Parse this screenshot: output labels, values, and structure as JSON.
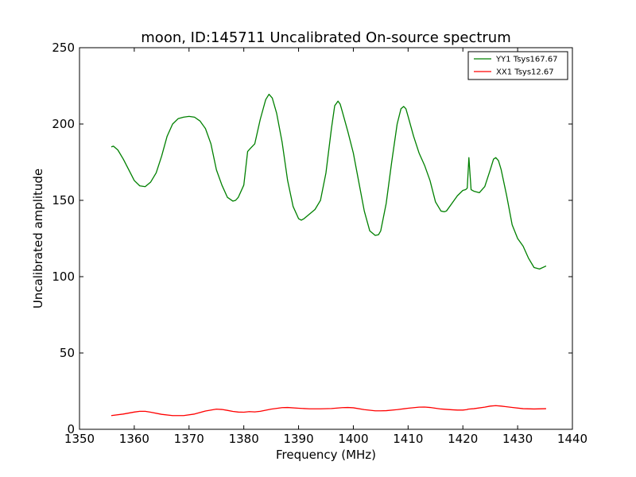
{
  "chart_data": {
    "type": "line",
    "title": "moon, ID:145711 Uncalibrated On-source spectrum",
    "xlabel": "Frequency (MHz)",
    "ylabel": "Uncalibrated amplitude",
    "xlim": [
      1350,
      1440
    ],
    "ylim": [
      0,
      250
    ],
    "xticks": [
      1350,
      1360,
      1370,
      1380,
      1390,
      1400,
      1410,
      1420,
      1430,
      1440
    ],
    "yticks": [
      0,
      50,
      100,
      150,
      200,
      250
    ],
    "grid": false,
    "legend_position": "top-right",
    "series": [
      {
        "name": "YY1 Tsys167.67",
        "color": "#008000",
        "x": [
          1355.8,
          1356.2,
          1357,
          1358,
          1359,
          1360,
          1361,
          1362,
          1363,
          1364,
          1365,
          1366,
          1367,
          1368,
          1369,
          1370,
          1371,
          1372,
          1373,
          1374,
          1375,
          1376,
          1377,
          1378,
          1378.5,
          1379,
          1380,
          1380.7,
          1381.2,
          1382,
          1383,
          1384,
          1384.6,
          1385.2,
          1386,
          1387,
          1388,
          1389,
          1390,
          1390.5,
          1391,
          1392,
          1393,
          1394,
          1395,
          1396,
          1396.6,
          1397.2,
          1397.6,
          1398,
          1399,
          1400,
          1401,
          1402,
          1403,
          1404,
          1404.6,
          1405,
          1406,
          1407,
          1408,
          1408.7,
          1409.2,
          1409.6,
          1410,
          1411,
          1412,
          1413,
          1414,
          1415,
          1416,
          1416.6,
          1417,
          1418,
          1419,
          1420,
          1420.5,
          1420.8,
          1421.1,
          1421.5,
          1422,
          1423,
          1424,
          1425,
          1425.6,
          1426,
          1426.5,
          1427,
          1428,
          1429,
          1430,
          1431,
          1432,
          1433,
          1434,
          1435.2
        ],
        "y": [
          185,
          185.5,
          183,
          177,
          170,
          163,
          159.5,
          159,
          162,
          168,
          179,
          192,
          200,
          203.5,
          204.5,
          205,
          204.5,
          202,
          197,
          187,
          170,
          160,
          152,
          149.5,
          150,
          152,
          160,
          182,
          184,
          187,
          203,
          216,
          219.5,
          217,
          207,
          188,
          163,
          146,
          138,
          137,
          138,
          141,
          144,
          150,
          168,
          197,
          212,
          215,
          213,
          208,
          195,
          181,
          162,
          143,
          130,
          127,
          127.5,
          130,
          148,
          175,
          200,
          210,
          211.5,
          210,
          205,
          192,
          181,
          173,
          163,
          149,
          143,
          142.5,
          143,
          148,
          153,
          156.5,
          157,
          158,
          178,
          157,
          156,
          155,
          159,
          170,
          177,
          178,
          176,
          170,
          153,
          134,
          125,
          120,
          112,
          106,
          105,
          107
        ]
      },
      {
        "name": "XX1 Tsys12.67",
        "color": "#ff0000",
        "x": [
          1355.8,
          1358,
          1360,
          1361,
          1362,
          1363,
          1365,
          1367,
          1369,
          1371,
          1373,
          1375,
          1376,
          1377,
          1378,
          1379,
          1380,
          1381,
          1382,
          1383,
          1385,
          1387,
          1388,
          1390,
          1392,
          1394,
          1396,
          1398,
          1399,
          1400,
          1402,
          1404,
          1405,
          1406,
          1408,
          1410,
          1412,
          1413,
          1414,
          1416,
          1418,
          1419,
          1420,
          1420.7,
          1421,
          1422,
          1424,
          1425,
          1426,
          1427,
          1429,
          1431,
          1433,
          1435.2
        ],
        "y": [
          9,
          10,
          11.3,
          11.8,
          11.8,
          11.2,
          9.8,
          9,
          9,
          10,
          12,
          13.2,
          13,
          12.4,
          11.7,
          11.3,
          11.2,
          11.6,
          11.4,
          11.8,
          13.2,
          14.2,
          14.3,
          13.8,
          13.4,
          13.4,
          13.6,
          14.2,
          14.3,
          14.1,
          12.9,
          12.1,
          12.1,
          12.2,
          12.9,
          13.8,
          14.5,
          14.6,
          14.3,
          13.3,
          12.8,
          12.6,
          12.6,
          12.9,
          13.2,
          13.5,
          14.5,
          15.2,
          15.5,
          15.2,
          14.3,
          13.5,
          13.3,
          13.5
        ]
      }
    ]
  }
}
